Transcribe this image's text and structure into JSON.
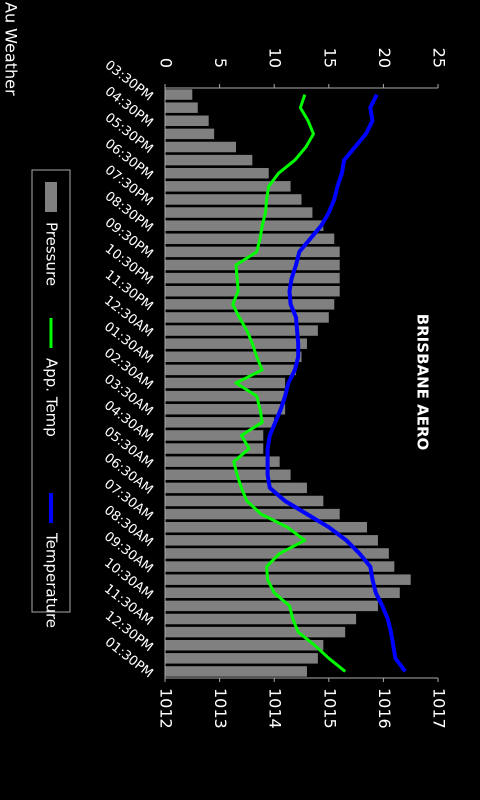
{
  "app_bar": {
    "title": "Au Weather"
  },
  "chart_data": {
    "type": "combo",
    "title": "BRISBANE AERO",
    "categories": [
      "03:30PM",
      null,
      "04:30PM",
      null,
      "05:30PM",
      null,
      "06:30PM",
      null,
      "07:30PM",
      null,
      "08:30PM",
      null,
      "09:30PM",
      null,
      "10:30PM",
      null,
      "11:30PM",
      null,
      "12:30AM",
      null,
      "01:30AM",
      null,
      "02:30AM",
      null,
      "03:30AM",
      null,
      "04:30AM",
      null,
      "05:30AM",
      null,
      "06:30AM",
      null,
      "07:30AM",
      null,
      "08:30AM",
      null,
      "09:30AM",
      null,
      "10:30AM",
      null,
      "11:30AM",
      null,
      "12:30PM",
      null,
      "01:30PM"
    ],
    "series": [
      {
        "name": "Pressure",
        "type": "bar",
        "axis": "y2",
        "color": "#808080",
        "values": [
          1012.5,
          1012.6,
          1012.8,
          1012.9,
          1013.3,
          1013.6,
          1013.9,
          1014.3,
          1014.5,
          1014.7,
          1014.9,
          1015.1,
          1015.2,
          1015.2,
          1015.2,
          1015.2,
          1015.1,
          1015.0,
          1014.8,
          1014.6,
          1014.5,
          1014.4,
          1014.2,
          1014.2,
          1014.2,
          1014.0,
          1013.8,
          1013.8,
          1014.1,
          1014.3,
          1014.6,
          1014.9,
          1015.2,
          1015.7,
          1015.9,
          1016.1,
          1016.2,
          1016.5,
          1016.3,
          1015.9,
          1015.5,
          1015.3,
          1014.9,
          1014.8,
          1014.6
        ]
      },
      {
        "name": "App. Temp",
        "type": "line",
        "color": "#00ff00",
        "values": [
          12.8,
          12.4,
          13.1,
          13.6,
          12.9,
          11.9,
          10.4,
          9.5,
          9.3,
          9.2,
          8.9,
          8.7,
          8.4,
          6.5,
          6.6,
          6.7,
          6.2,
          6.8,
          7.5,
          8.0,
          8.4,
          8.9,
          6.5,
          8.4,
          8.7,
          8.9,
          7.0,
          7.7,
          6.3,
          6.6,
          7.0,
          7.5,
          8.8,
          11.2,
          12.8,
          10.5,
          9.3,
          9.4,
          10.0,
          11.4,
          11.7,
          12.2,
          13.7,
          15.0,
          16.5
        ]
      },
      {
        "name": "Temperature",
        "type": "line",
        "color": "#0000ff",
        "values": [
          19.4,
          18.8,
          19.0,
          18.4,
          17.4,
          16.4,
          16.2,
          15.8,
          15.5,
          15.0,
          14.3,
          13.3,
          12.3,
          12.0,
          11.6,
          11.4,
          11.5,
          12.0,
          12.1,
          12.2,
          12.2,
          11.9,
          11.3,
          11.0,
          10.6,
          10.1,
          9.6,
          9.4,
          9.4,
          9.4,
          9.6,
          11.0,
          13.0,
          15.0,
          16.6,
          17.8,
          18.8,
          19.0,
          19.3,
          19.9,
          20.4,
          20.7,
          20.9,
          21.1,
          22.0
        ]
      }
    ],
    "ylim": [
      0,
      25
    ],
    "yticks": [
      0,
      5,
      10,
      15,
      20,
      25
    ],
    "y2lim": [
      1012,
      1017
    ],
    "y2ticks": [
      1012,
      1013,
      1014,
      1015,
      1016,
      1017
    ],
    "legend": "bottom"
  }
}
